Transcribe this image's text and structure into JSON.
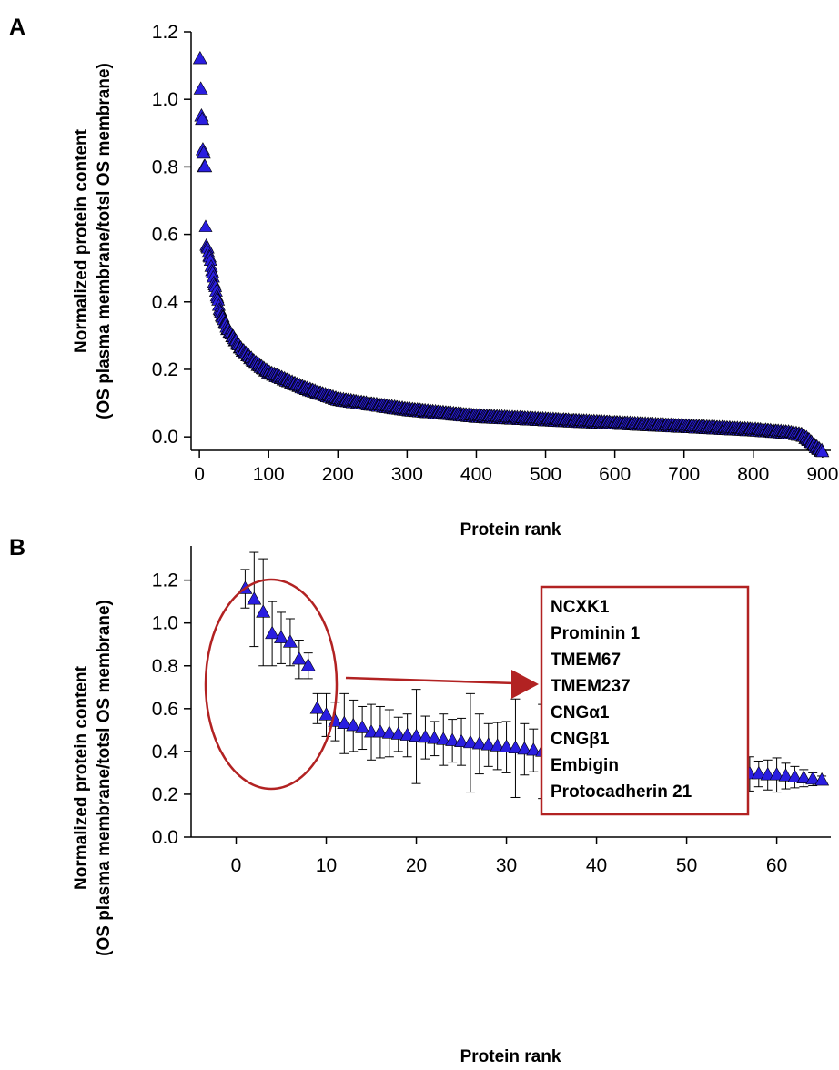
{
  "chart_data": [
    {
      "panel_label": "A",
      "type": "scatter",
      "xlabel": "Protein rank",
      "ylabel": "Normalized protein content",
      "ylabel2": "(OS plasma membrane/totsl OS membrane)",
      "xlim": [
        -12,
        912
      ],
      "ylim": [
        -0.04,
        1.2
      ],
      "xticks": [
        0,
        100,
        200,
        300,
        400,
        500,
        600,
        700,
        800,
        900
      ],
      "yticks": [
        0.0,
        0.2,
        0.4,
        0.6,
        0.8,
        1.0,
        1.2
      ],
      "ytick_labels": [
        "0.0",
        "0.2",
        "0.4",
        "0.6",
        "0.8",
        "1.0",
        "1.2"
      ],
      "marker": "triangle",
      "marker_color": "#2a1ee0",
      "curve_anchors": {
        "x": [
          9,
          10,
          15,
          20,
          30,
          40,
          60,
          80,
          100,
          150,
          200,
          300,
          400,
          500,
          600,
          700,
          800,
          850,
          870,
          880,
          890,
          900
        ],
        "y": [
          0.62,
          0.57,
          0.53,
          0.47,
          0.37,
          0.32,
          0.26,
          0.22,
          0.19,
          0.145,
          0.11,
          0.08,
          0.06,
          0.05,
          0.04,
          0.03,
          0.02,
          0.012,
          0.005,
          -0.01,
          -0.03,
          -0.045
        ]
      },
      "top_points": {
        "x": [
          1,
          2,
          3,
          4,
          5,
          6,
          7,
          8
        ],
        "y": [
          1.12,
          1.03,
          0.95,
          0.94,
          0.85,
          0.84,
          0.8,
          0.8
        ]
      }
    },
    {
      "panel_label": "B",
      "type": "scatter",
      "xlabel": "Protein rank",
      "ylabel": "Normalized protein content",
      "ylabel2": "(OS plasma membrane/totsl OS membrane)",
      "xlim": [
        -5,
        66
      ],
      "ylim": [
        0,
        1.36
      ],
      "xticks": [
        0,
        10,
        20,
        30,
        40,
        50,
        60
      ],
      "yticks": [
        0.0,
        0.2,
        0.4,
        0.6,
        0.8,
        1.0,
        1.2
      ],
      "ytick_labels": [
        "0.0",
        "0.2",
        "0.4",
        "0.6",
        "0.8",
        "1.0",
        "1.2"
      ],
      "marker": "triangle",
      "marker_color": "#2a1ee0",
      "x": [
        1,
        2,
        3,
        4,
        5,
        6,
        7,
        8,
        9,
        10,
        11,
        12,
        13,
        14,
        15,
        16,
        17,
        18,
        19,
        20,
        21,
        22,
        23,
        24,
        25,
        26,
        27,
        28,
        29,
        30,
        31,
        32,
        33,
        34,
        35,
        36,
        37,
        38,
        39,
        40,
        41,
        42,
        43,
        44,
        45,
        46,
        47,
        48,
        49,
        50,
        51,
        52,
        53,
        54,
        55,
        56,
        57,
        58,
        59,
        60,
        61,
        62,
        63,
        64,
        65
      ],
      "y": [
        1.16,
        1.11,
        1.05,
        0.95,
        0.93,
        0.91,
        0.83,
        0.8,
        0.6,
        0.57,
        0.54,
        0.53,
        0.52,
        0.51,
        0.49,
        0.49,
        0.485,
        0.48,
        0.475,
        0.47,
        0.465,
        0.46,
        0.455,
        0.45,
        0.445,
        0.44,
        0.435,
        0.43,
        0.425,
        0.42,
        0.415,
        0.41,
        0.405,
        0.4,
        0.395,
        0.39,
        0.385,
        0.38,
        0.375,
        0.37,
        0.365,
        0.36,
        0.355,
        0.35,
        0.345,
        0.34,
        0.335,
        0.33,
        0.325,
        0.32,
        0.315,
        0.31,
        0.305,
        0.305,
        0.3,
        0.3,
        0.295,
        0.295,
        0.29,
        0.29,
        0.285,
        0.28,
        0.275,
        0.27,
        0.265
      ],
      "err": [
        0.09,
        0.22,
        0.25,
        0.15,
        0.12,
        0.11,
        0.09,
        0.06,
        0.07,
        0.1,
        0.09,
        0.14,
        0.12,
        0.1,
        0.13,
        0.12,
        0.11,
        0.08,
        0.1,
        0.22,
        0.1,
        0.08,
        0.12,
        0.1,
        0.11,
        0.23,
        0.14,
        0.1,
        0.11,
        0.12,
        0.23,
        0.12,
        0.1,
        0.22,
        0.11,
        0.1,
        0.08,
        0.1,
        0.11,
        0.1,
        0.09,
        0.1,
        0.08,
        0.09,
        0.08,
        0.07,
        0.08,
        0.1,
        0.06,
        0.09,
        0.1,
        0.08,
        0.09,
        0.06,
        0.08,
        0.07,
        0.08,
        0.06,
        0.07,
        0.08,
        0.06,
        0.05,
        0.04,
        0.03,
        0.02
      ],
      "annotation_box": [
        "NCXK1",
        "Prominin 1",
        "TMEM67",
        "TMEM237",
        "CNGα1",
        "CNGβ1",
        "Embigin",
        "Protocadherin 21"
      ],
      "annotation_color": "#b22222"
    }
  ]
}
